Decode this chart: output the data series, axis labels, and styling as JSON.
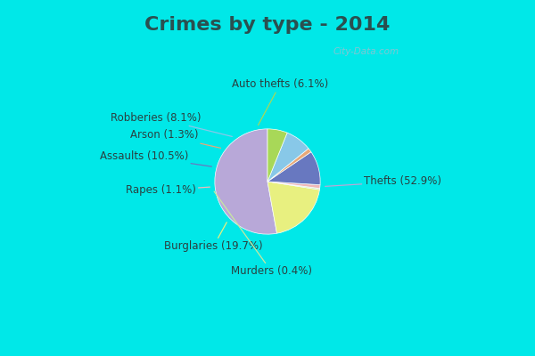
{
  "title": "Crimes by type - 2014",
  "title_fontsize": 16,
  "title_fontweight": "bold",
  "title_color": "#2a5050",
  "slices": [
    {
      "label": "Thefts (52.9%)",
      "value": 52.9,
      "color": "#b8a8d8"
    },
    {
      "label": "Burglaries (19.7%)",
      "value": 19.7,
      "color": "#e8f080"
    },
    {
      "label": "Murders (0.4%)",
      "value": 0.4,
      "color": "#c8e8a0"
    },
    {
      "label": "Rapes (1.1%)",
      "value": 1.1,
      "color": "#f0b8b8"
    },
    {
      "label": "Assaults (10.5%)",
      "value": 10.5,
      "color": "#6878c0"
    },
    {
      "label": "Arson (1.3%)",
      "value": 1.3,
      "color": "#e8a878"
    },
    {
      "label": "Robberies (8.1%)",
      "value": 8.1,
      "color": "#88c8e8"
    },
    {
      "label": "Auto thefts (6.1%)",
      "value": 6.1,
      "color": "#a8d858"
    }
  ],
  "border_color": "#00e8e8",
  "border_width": 10,
  "body_bg": "#d0ece0",
  "startangle": 90,
  "label_fontsize": 8.5,
  "watermark": "City-Data.com",
  "line_colors": [
    "#b8a8d8",
    "#e8f080",
    "#c8e8a0",
    "#f0b8b8",
    "#6878c0",
    "#e8a878",
    "#88c8e8",
    "#a8d858"
  ]
}
